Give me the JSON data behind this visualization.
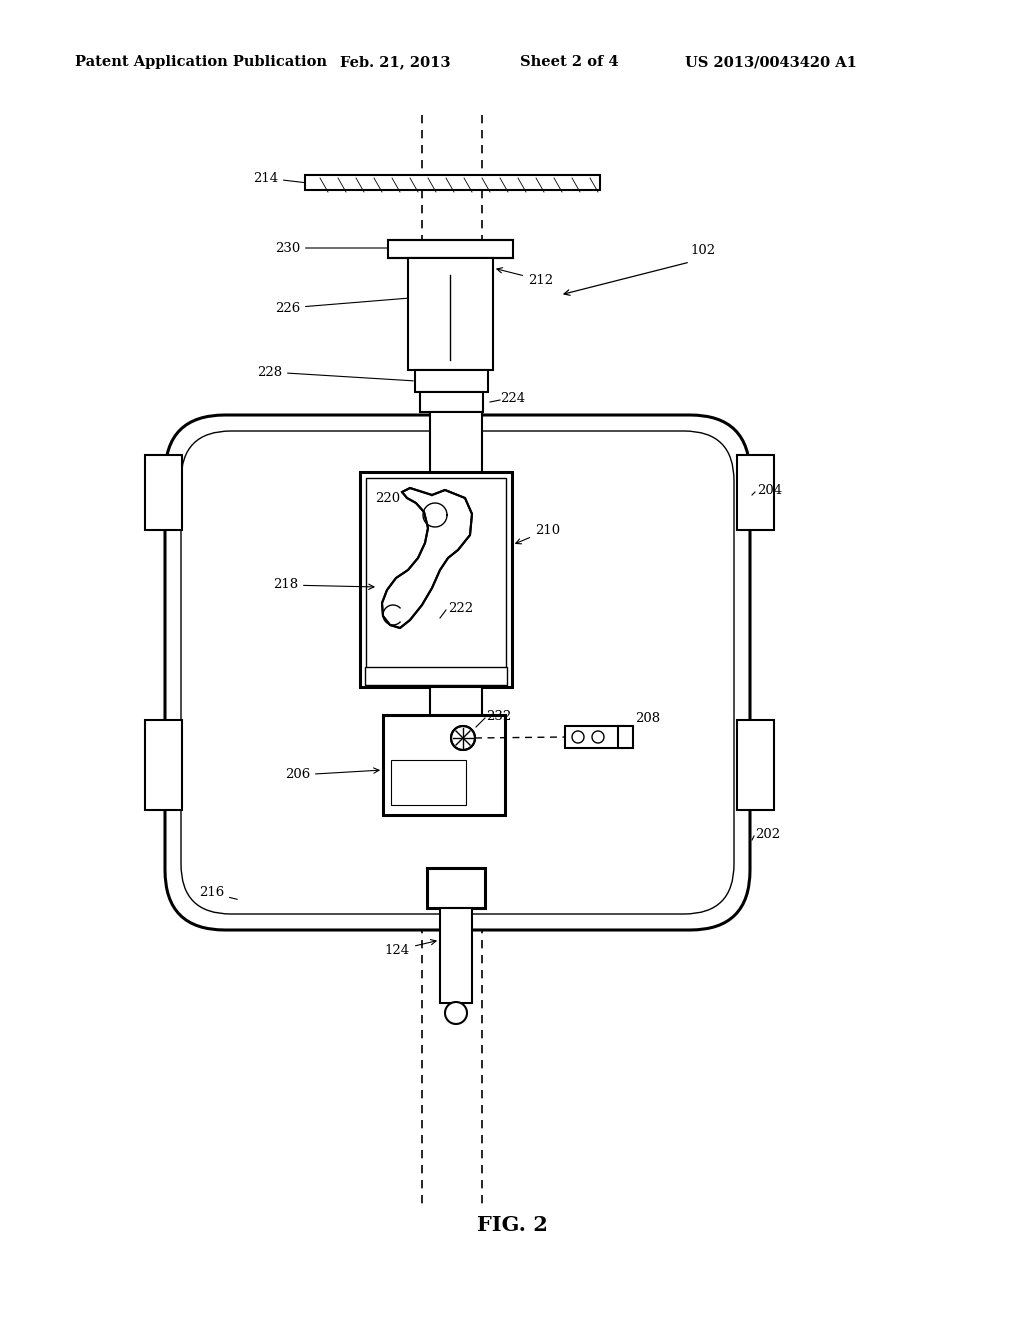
{
  "title": "Patent Application Publication",
  "date": "Feb. 21, 2013",
  "sheet": "Sheet 2 of 4",
  "patent_num": "US 2013/0043420 A1",
  "fig_label": "FIG. 2",
  "bg_color": "#ffffff",
  "line_color": "#000000"
}
